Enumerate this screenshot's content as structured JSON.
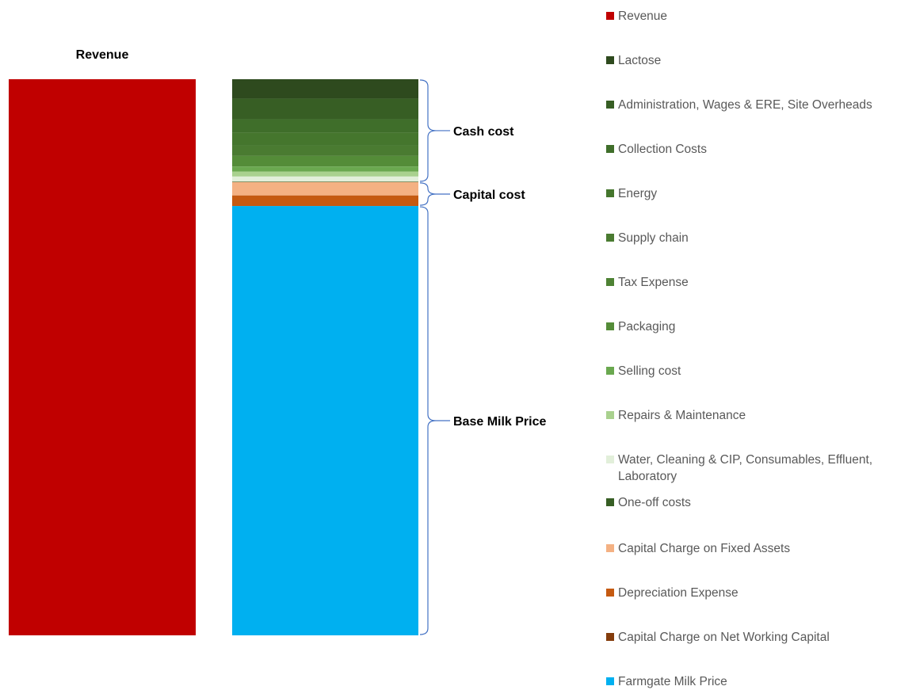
{
  "chart_data": {
    "type": "bar",
    "stacked": true,
    "title": "",
    "revenue_label": "Revenue",
    "revenue_color": "#C00000",
    "stack_total": 100,
    "segments": [
      {
        "name": "Lactose",
        "value": 3.5,
        "color": "#2E4A1E"
      },
      {
        "name": "Administration, Wages & ERE, Site Overheads",
        "value": 3.7,
        "color": "#375E24"
      },
      {
        "name": "Collection Costs",
        "value": 2.4,
        "color": "#3F6E2A"
      },
      {
        "name": "Energy",
        "value": 2.3,
        "color": "#45762D"
      },
      {
        "name": "Supply chain",
        "value": 1.9,
        "color": "#4A7B31"
      },
      {
        "name": "Tax Expense",
        "value": 0.0,
        "color": "#4E8234"
      },
      {
        "name": "Packaging",
        "value": 1.9,
        "color": "#548C38"
      },
      {
        "name": "Selling cost",
        "value": 0.9,
        "color": "#6AA84F"
      },
      {
        "name": "Repairs & Maintenance",
        "value": 0.9,
        "color": "#A9D18E"
      },
      {
        "name": "Water, Cleaning & CIP, Consumables, Effluent, Laboratory",
        "value": 0.9,
        "color": "#E2EFDA"
      },
      {
        "name": "One-off costs",
        "value": 0.1,
        "color": "#375E24"
      },
      {
        "name": "Capital Charge on Fixed Assets",
        "value": 2.4,
        "color": "#F4B183"
      },
      {
        "name": "Depreciation Expense",
        "value": 1.9,
        "color": "#C55A11"
      },
      {
        "name": "Capital Charge on Net Working Capital",
        "value": 0.0,
        "color": "#843C0C"
      },
      {
        "name": "Farmgate Milk Price",
        "value": 77.2,
        "color": "#00B0F0"
      }
    ],
    "legend_position": "right",
    "brackets": [
      {
        "label": "Cash cost",
        "from": 0,
        "to": 11
      },
      {
        "label": "Capital cost",
        "from": 11,
        "to": 14
      },
      {
        "label": "Base Milk Price",
        "from": 14,
        "to": 15
      }
    ],
    "bracket_color": "#4472C4"
  }
}
